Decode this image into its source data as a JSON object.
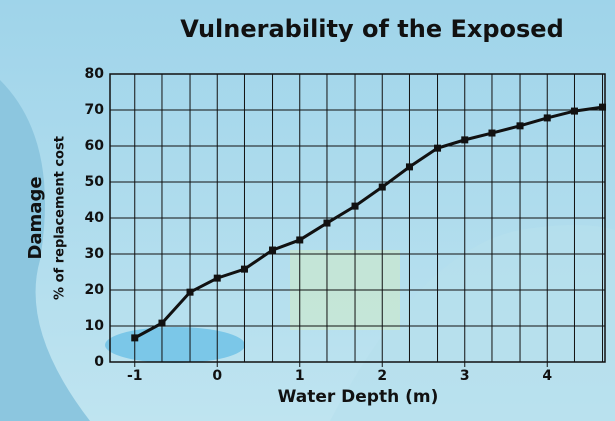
{
  "chart_data": {
    "type": "line",
    "title": "Vulnerability of the Exposed",
    "ylabel": "Damage",
    "ylabel_sub": "% of replacement cost",
    "xlabel": "Water Depth (m)",
    "x": [
      -1,
      -0.67,
      -0.33,
      0,
      0.33,
      0.67,
      1,
      1.33,
      1.67,
      2,
      2.33,
      2.67,
      3,
      3.33,
      3.67,
      4,
      4.33,
      4.67
    ],
    "series": [
      {
        "name": "Damage",
        "color": "#111111",
        "values": [
          6.7,
          10.8,
          19.4,
          23.3,
          25.8,
          31.1,
          33.9,
          38.6,
          43.3,
          48.6,
          54.2,
          59.4,
          61.7,
          63.6,
          65.6,
          67.8,
          69.7,
          70.8
        ]
      }
    ],
    "xlim": [
      -1.3,
      4.7
    ],
    "xticks": [
      -1,
      0,
      1,
      2,
      3,
      4
    ],
    "ylim": [
      0,
      80
    ],
    "yticks": [
      0,
      10,
      20,
      30,
      40,
      50,
      60,
      70,
      80
    ],
    "grid": true
  }
}
